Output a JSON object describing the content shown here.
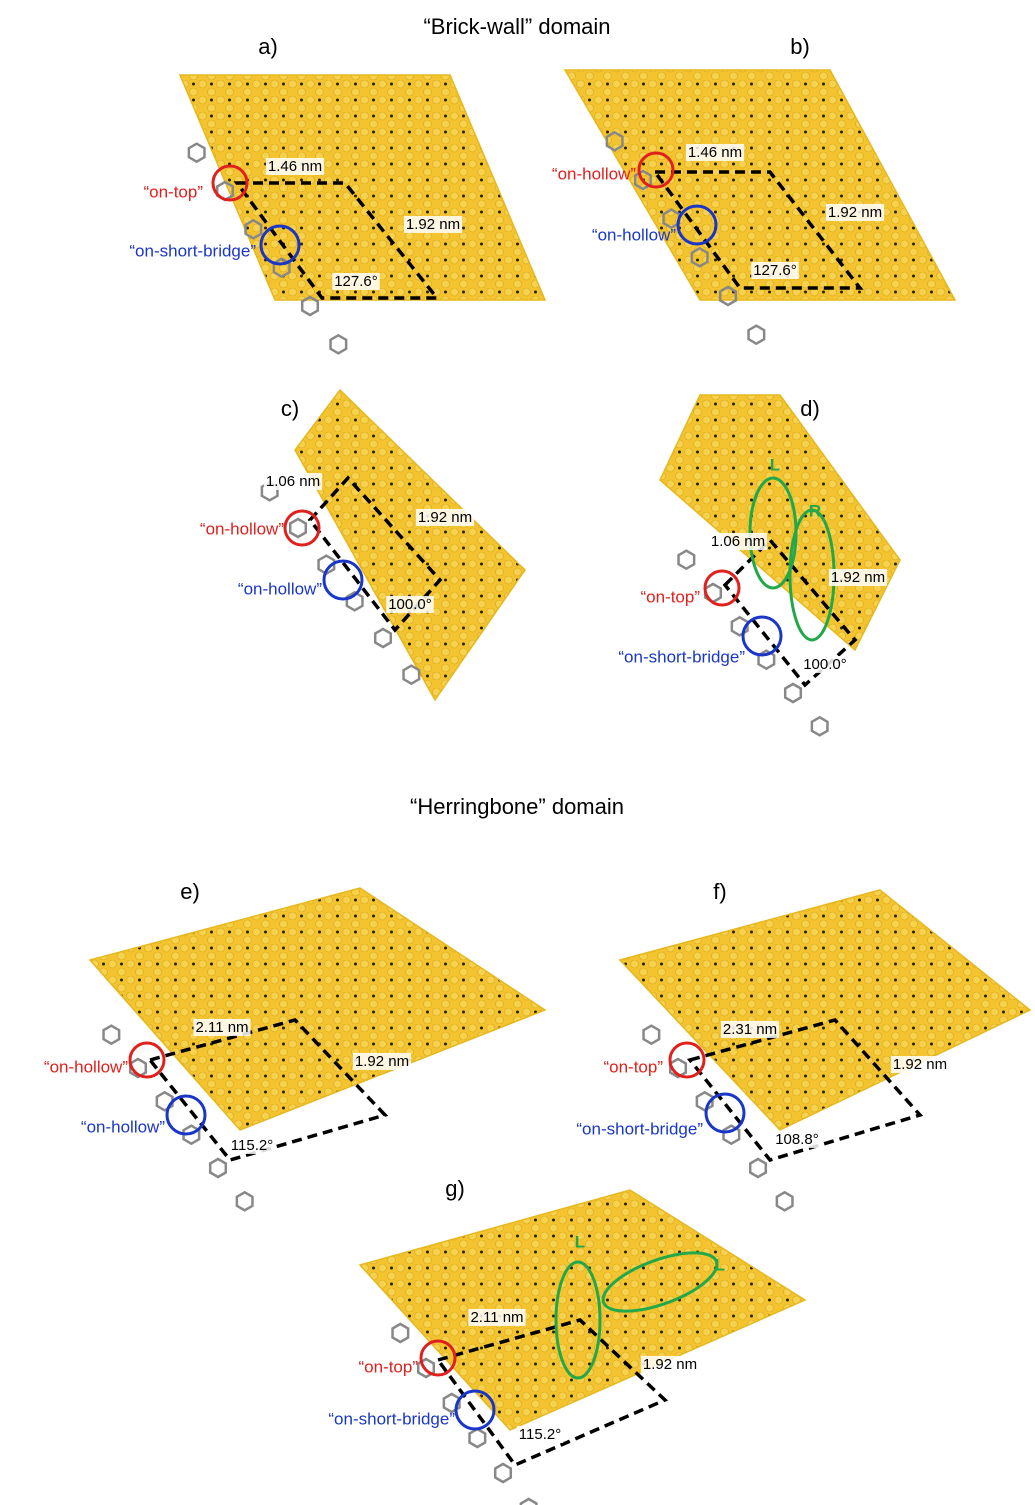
{
  "sections": [
    {
      "title": "“Brick-wall” domain",
      "panels": [
        {
          "label": "a)",
          "length_a": "1.46 nm",
          "length_b": "1.92 nm",
          "angle": "127.6°",
          "site_red": "“on-top”",
          "site_blue": "“on-short-bridge”"
        },
        {
          "label": "b)",
          "length_a": "1.46 nm",
          "length_b": "1.92 nm",
          "angle": "127.6°",
          "site_red": "“on-hollow”",
          "site_blue": "“on-hollow”"
        },
        {
          "label": "c)",
          "length_a": "1.06 nm",
          "length_b": "1.92 nm",
          "angle": "100.0°",
          "site_red": "“on-hollow”",
          "site_blue": "“on-hollow”"
        },
        {
          "label": "d)",
          "length_a": "1.06 nm",
          "length_b": "1.92 nm",
          "angle": "100.0°",
          "site_red": "“on-top”",
          "site_blue": "“on-short-bridge”",
          "green_labels": [
            "L",
            "R"
          ]
        }
      ]
    },
    {
      "title": "“Herringbone” domain",
      "panels": [
        {
          "label": "e)",
          "length_a": "2.11 nm",
          "length_b": "1.92 nm",
          "angle": "115.2°",
          "site_red": "“on-hollow”",
          "site_blue": "“on-hollow”"
        },
        {
          "label": "f)",
          "length_a": "2.31 nm",
          "length_b": "1.92 nm",
          "angle": "108.8°",
          "site_red": "“on-top”",
          "site_blue": "“on-short-bridge”"
        },
        {
          "label": "g)",
          "length_a": "2.11 nm",
          "length_b": "1.92 nm",
          "angle": "115.2°",
          "site_red": "“on-top”",
          "site_blue": "“on-short-bridge”",
          "green_labels": [
            "L",
            "L"
          ]
        }
      ]
    }
  ]
}
